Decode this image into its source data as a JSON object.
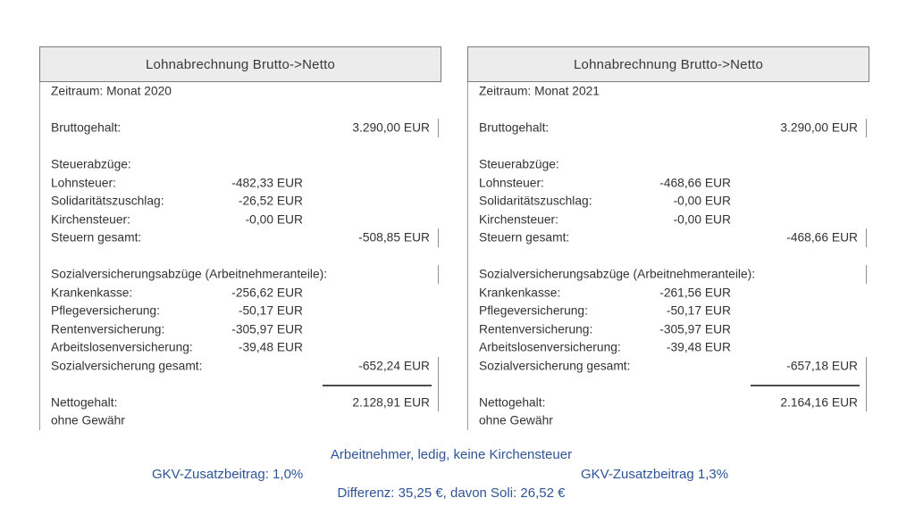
{
  "colors": {
    "accent_blue": "#2f5496",
    "header_fill": "#ececec",
    "header_border": "#7b7b7b",
    "body_border": "#9c9c9c",
    "text": "#333333"
  },
  "panels": [
    {
      "title": "Lohnabrechnung Brutto->Netto",
      "period": "Zeitraum: Monat 2020",
      "gross": {
        "label": "Bruttogehalt:",
        "value": "3.290,00 EUR"
      },
      "tax": {
        "header": "Steuerabzüge:",
        "items": [
          {
            "label": "Lohnsteuer:",
            "value": "-482,33 EUR"
          },
          {
            "label": "Solidaritätszuschlag:",
            "value": "-26,52 EUR"
          },
          {
            "label": "Kirchensteuer:",
            "value": "-0,00 EUR"
          }
        ],
        "total": {
          "label": "Steuern gesamt:",
          "value": "-508,85 EUR"
        }
      },
      "social": {
        "header": "Sozialversicherungsabzüge (Arbeitnehmeranteile):",
        "items": [
          {
            "label": "Krankenkasse:",
            "value": "-256,62 EUR"
          },
          {
            "label": "Pflegeversicherung:",
            "value": "-50,17 EUR"
          },
          {
            "label": "Rentenversicherung:",
            "value": "-305,97 EUR"
          },
          {
            "label": "Arbeitslosenversicherung:",
            "value": "-39,48 EUR"
          }
        ],
        "total": {
          "label": "Sozialversicherung gesamt:",
          "value": "-652,24 EUR"
        }
      },
      "net": {
        "label": "Nettogehalt:",
        "value": "2.128,91 EUR"
      },
      "disclaimer": "ohne Gewähr"
    },
    {
      "title": "Lohnabrechnung Brutto->Netto",
      "period": "Zeitraum: Monat 2021",
      "gross": {
        "label": "Bruttogehalt:",
        "value": "3.290,00 EUR"
      },
      "tax": {
        "header": "Steuerabzüge:",
        "items": [
          {
            "label": "Lohnsteuer:",
            "value": "-468,66 EUR"
          },
          {
            "label": "Solidaritätszuschlag:",
            "value": "-0,00 EUR"
          },
          {
            "label": "Kirchensteuer:",
            "value": "-0,00 EUR"
          }
        ],
        "total": {
          "label": "Steuern gesamt:",
          "value": "-468,66 EUR"
        }
      },
      "social": {
        "header": "Sozialversicherungsabzüge (Arbeitnehmeranteile):",
        "items": [
          {
            "label": "Krankenkasse:",
            "value": "-261,56 EUR"
          },
          {
            "label": "Pflegeversicherung:",
            "value": "-50,17 EUR"
          },
          {
            "label": "Rentenversicherung:",
            "value": "-305,97 EUR"
          },
          {
            "label": "Arbeitslosenversicherung:",
            "value": "-39,48 EUR"
          }
        ],
        "total": {
          "label": "Sozialversicherung gesamt:",
          "value": "-657,18 EUR"
        }
      },
      "net": {
        "label": "Nettogehalt:",
        "value": "2.164,16 EUR"
      },
      "disclaimer": "ohne Gewähr"
    }
  ],
  "footer": {
    "profile": "Arbeitnehmer, ledig, keine Kirchensteuer",
    "gkv_left": "GKV-Zusatzbeitrag: 1,0%",
    "gkv_right": "GKV-Zusatzbeitrag 1,3%",
    "difference": "Differenz: 35,25 €, davon Soli: 26,52 €"
  }
}
